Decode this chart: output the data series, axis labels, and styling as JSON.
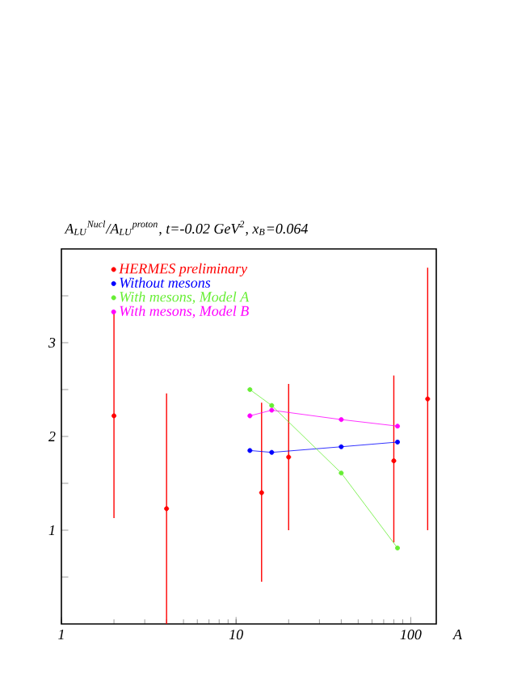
{
  "chart_data": {
    "type": "scatter",
    "title": "A$_{LU}$$^{Nucl}$/A$_{LU}$$^{proton}$,  t=-0.02 GeV$^{2}$,  x$_{B}$=0.064",
    "xlabel": "A",
    "log": "x",
    "xlim": [
      1,
      140
    ],
    "ylim": [
      0,
      4
    ],
    "xticks": [
      1,
      10,
      100
    ],
    "yticks": [
      {
        "value": 0.5,
        "label": null
      },
      1,
      {
        "value": 1.5,
        "label": null
      },
      2,
      {
        "value": 2.5,
        "label": null
      },
      3,
      {
        "value": 3.5,
        "label": null
      }
    ],
    "legend": "top left",
    "marker": "circle",
    "line_style": "solid",
    "series": [
      {
        "name": "HERMES preliminary",
        "color": "#ff0000",
        "x": [
          2,
          4,
          14,
          20,
          80,
          125
        ],
        "values": [
          2.22,
          1.23,
          1.4,
          1.78,
          1.74,
          2.4
        ],
        "errors": [
          [
            1.13,
            3.33
          ],
          [
            0,
            2.46
          ],
          [
            0.45,
            2.36
          ],
          [
            1.0,
            2.56
          ],
          [
            0.87,
            2.65
          ],
          [
            1.0,
            3.8
          ]
        ]
      },
      {
        "name": "Without mesons",
        "type": "line",
        "color": "#0000ff",
        "x": [
          12,
          16,
          40,
          84
        ],
        "values": [
          1.85,
          1.83,
          1.89,
          1.94
        ]
      },
      {
        "name": "With mesons, Model A",
        "type": "line",
        "color": "#66ee33",
        "x": [
          12,
          16,
          40,
          84
        ],
        "values": [
          2.5,
          2.33,
          1.61,
          0.81
        ]
      },
      {
        "name": "With mesons, Model B",
        "type": "line",
        "color": "#ff00ff",
        "x": [
          12,
          16,
          40,
          84
        ],
        "values": [
          2.22,
          2.28,
          2.18,
          2.11
        ]
      }
    ]
  }
}
